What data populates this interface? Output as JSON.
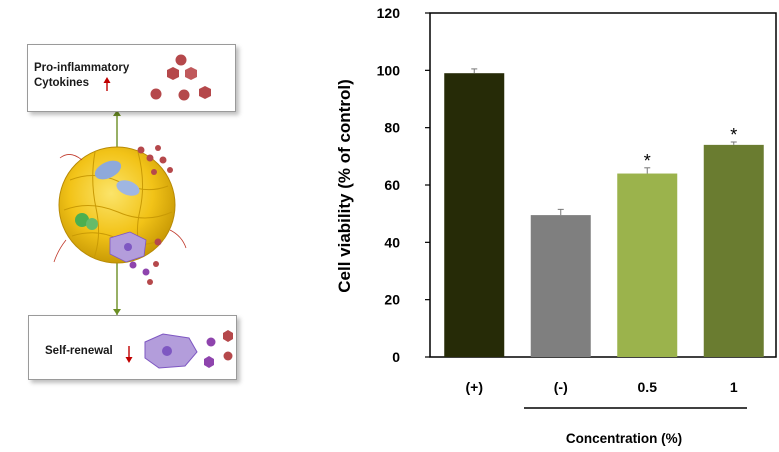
{
  "illustration": {
    "top_box": {
      "line1": "Pro-inflammatory",
      "line2": "Cytokines",
      "arrow": "red-up-arrow"
    },
    "bottom_box": {
      "label": "Self-renewal",
      "arrow": "red-down-arrow"
    },
    "colors": {
      "cytokine": "#b5484b",
      "connector": "#6b8e23",
      "cell": "#f2c318",
      "red_arrow": "#c00000"
    }
  },
  "chart_data": {
    "type": "bar",
    "categories": [
      "(+)",
      "(-)",
      "0.5",
      "1"
    ],
    "values": [
      99,
      49.5,
      64,
      74
    ],
    "errors": [
      1.5,
      2,
      2,
      1
    ],
    "significance": [
      "",
      "",
      "*",
      "*"
    ],
    "colors": [
      "#262b07",
      "#7f7f7f",
      "#9bb34c",
      "#6a7c30"
    ],
    "ylabel": "Cell viability (% of control)",
    "xlabel": "Concentration (%)",
    "ylim": [
      0,
      120
    ],
    "yticks": [
      "0",
      "20",
      "40",
      "60",
      "80",
      "100",
      "120"
    ],
    "grid": false
  }
}
